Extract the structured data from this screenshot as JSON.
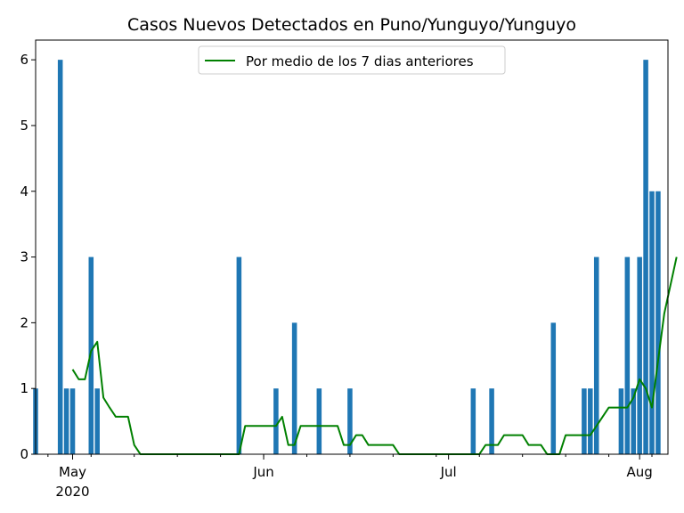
{
  "chart_data": {
    "type": "bar",
    "title": "Casos Nuevos Detectados en Puno/Yunguyo/Yunguyo",
    "xlabel": "",
    "ylabel": "",
    "ylim": [
      0,
      6.3
    ],
    "x_range": [
      "2020-04-25",
      "2020-08-05"
    ],
    "yticks": [
      "0",
      "1",
      "2",
      "3",
      "4",
      "5",
      "6"
    ],
    "xticks": [
      {
        "date": "2020-05-01",
        "label": "May",
        "sublabel": "2020"
      },
      {
        "date": "2020-06-01",
        "label": "Jun",
        "sublabel": ""
      },
      {
        "date": "2020-07-01",
        "label": "Jul",
        "sublabel": ""
      },
      {
        "date": "2020-08-01",
        "label": "Aug",
        "sublabel": ""
      }
    ],
    "grid": false,
    "legend_position": "top-center",
    "bar_color": "#1f77b4",
    "line_color": "#008000",
    "bars": [
      {
        "date": "2020-04-25",
        "value": 1
      },
      {
        "date": "2020-04-29",
        "value": 6
      },
      {
        "date": "2020-04-30",
        "value": 1
      },
      {
        "date": "2020-05-01",
        "value": 1
      },
      {
        "date": "2020-05-04",
        "value": 3
      },
      {
        "date": "2020-05-05",
        "value": 1
      },
      {
        "date": "2020-05-28",
        "value": 3
      },
      {
        "date": "2020-06-03",
        "value": 1
      },
      {
        "date": "2020-06-06",
        "value": 2
      },
      {
        "date": "2020-06-10",
        "value": 1
      },
      {
        "date": "2020-06-15",
        "value": 1
      },
      {
        "date": "2020-07-05",
        "value": 1
      },
      {
        "date": "2020-07-08",
        "value": 1
      },
      {
        "date": "2020-07-18",
        "value": 2
      },
      {
        "date": "2020-07-23",
        "value": 1
      },
      {
        "date": "2020-07-24",
        "value": 1
      },
      {
        "date": "2020-07-25",
        "value": 3
      },
      {
        "date": "2020-07-29",
        "value": 1
      },
      {
        "date": "2020-07-30",
        "value": 3
      },
      {
        "date": "2020-07-31",
        "value": 1
      },
      {
        "date": "2020-08-01",
        "value": 3
      },
      {
        "date": "2020-08-02",
        "value": 6
      },
      {
        "date": "2020-08-03",
        "value": 4
      },
      {
        "date": "2020-08-04",
        "value": 4
      }
    ],
    "series": [
      {
        "name": "Por medio de los 7 dias anteriores",
        "start_date": "2020-05-01",
        "values": [
          1.29,
          1.14,
          1.14,
          1.57,
          1.71,
          0.86,
          0.71,
          0.57,
          0.57,
          0.57,
          0.14,
          0,
          0,
          0,
          0,
          0,
          0,
          0,
          0,
          0,
          0,
          0,
          0,
          0,
          0,
          0,
          0,
          0,
          0.43,
          0.43,
          0.43,
          0.43,
          0.43,
          0.43,
          0.57,
          0.14,
          0.14,
          0.43,
          0.43,
          0.43,
          0.43,
          0.43,
          0.43,
          0.43,
          0.14,
          0.14,
          0.29,
          0.29,
          0.14,
          0.14,
          0.14,
          0.14,
          0.14,
          0,
          0,
          0,
          0,
          0,
          0,
          0,
          0,
          0,
          0,
          0,
          0,
          0,
          0,
          0.14,
          0.14,
          0.14,
          0.29,
          0.29,
          0.29,
          0.29,
          0.14,
          0.14,
          0.14,
          0,
          0,
          0,
          0.29,
          0.29,
          0.29,
          0.29,
          0.29,
          0.43,
          0.57,
          0.71,
          0.71,
          0.71,
          0.71,
          0.86,
          1.14,
          1,
          0.71,
          1.43,
          2.14,
          2.57,
          3
        ]
      }
    ]
  }
}
